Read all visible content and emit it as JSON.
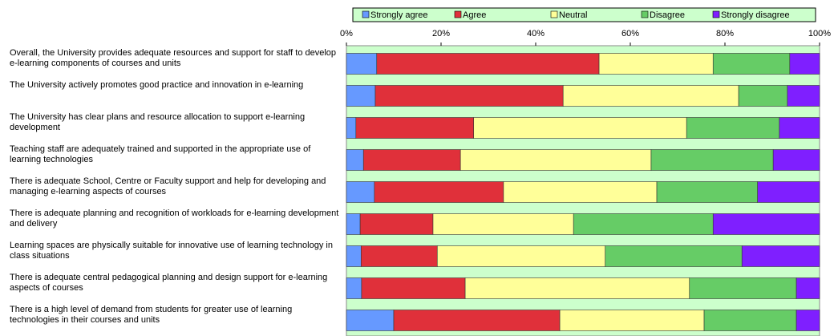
{
  "chart_data": {
    "type": "stacked_barh",
    "categories": [
      "Overall, the University provides adequate resources and support for staff to develop e-learning components of courses and units",
      "The University actively promotes good practice and innovation in e-learning",
      "The University has clear plans and resource allocation to support e-learning development",
      "Teaching staff are adequately trained and supported in the appropriate use of learning technologies",
      "There is adequate School, Centre or Faculty support and help for developing and managing e-learning aspects of courses",
      "There is adequate planning and recognition of workloads for e-learning development and delivery",
      "Learning spaces are physically suitable for innovative use of learning technology in class situations",
      "There is adequate central pedagogical planning and design support for e-learning aspects of courses",
      "There is a high level of demand from students for greater use of learning technologies in their courses and units"
    ],
    "series": [
      {
        "name": "Strongly agree",
        "color": "#6699ff",
        "values": [
          6.4,
          6.1,
          2.0,
          3.6,
          5.9,
          2.9,
          3.1,
          3.2,
          10.0
        ]
      },
      {
        "name": "Agree",
        "color": "#e0303a",
        "values": [
          47.0,
          39.7,
          24.9,
          20.5,
          27.3,
          15.4,
          16.1,
          21.9,
          35.1
        ]
      },
      {
        "name": "Neutral",
        "color": "#ffff99",
        "values": [
          24.1,
          37.1,
          45.0,
          40.3,
          32.4,
          29.7,
          35.5,
          47.4,
          30.5
        ]
      },
      {
        "name": "Disagree",
        "color": "#66cc66",
        "values": [
          16.2,
          10.3,
          19.6,
          25.8,
          21.3,
          29.5,
          28.9,
          22.6,
          19.5
        ]
      },
      {
        "name": "Strongly disagree",
        "color": "#7f1fff",
        "values": [
          6.3,
          6.8,
          8.5,
          9.8,
          13.1,
          22.5,
          16.4,
          4.9,
          4.9
        ]
      }
    ],
    "xlim": [
      0,
      100
    ],
    "xticks": [
      {
        "value": 0,
        "label": "0%"
      },
      {
        "value": 20,
        "label": "20%"
      },
      {
        "value": 40,
        "label": "40%"
      },
      {
        "value": 60,
        "label": "60%"
      },
      {
        "value": 80,
        "label": "80%"
      },
      {
        "value": 100,
        "label": "100%"
      }
    ],
    "legend": "top",
    "plot_background": "#ccffcc"
  }
}
